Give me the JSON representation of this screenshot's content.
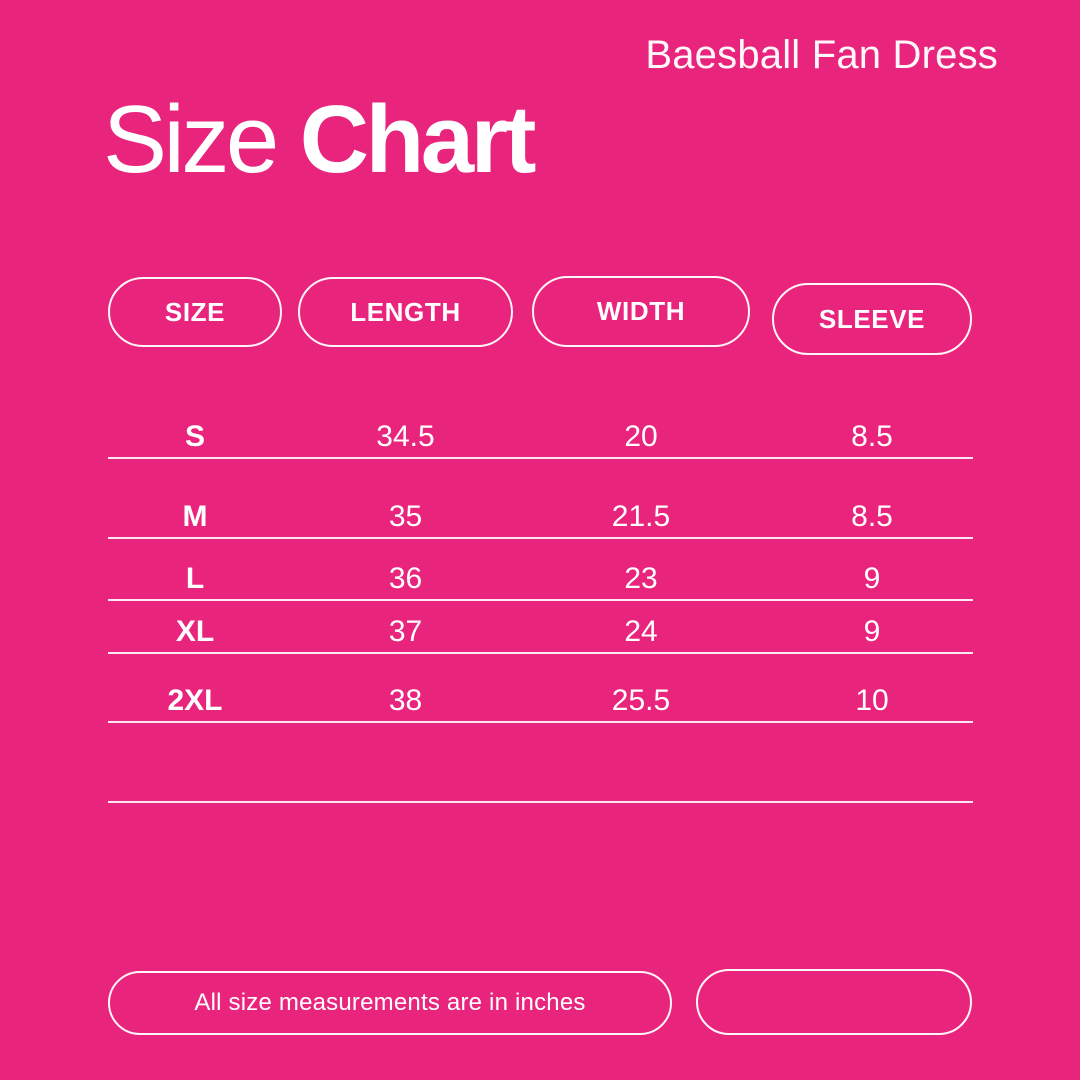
{
  "header": {
    "product_name": "Baesball Fan Dress"
  },
  "title": {
    "light": "Size",
    "bold": "Chart"
  },
  "chart_data": {
    "type": "table",
    "title": "Size Chart",
    "product": "Baesball Fan Dress",
    "columns": [
      "SIZE",
      "LENGTH",
      "WIDTH",
      "SLEEVE"
    ],
    "rows": [
      [
        "S",
        34.5,
        20,
        8.5
      ],
      [
        "M",
        35,
        21.5,
        8.5
      ],
      [
        "L",
        36,
        23,
        9
      ],
      [
        "XL",
        37,
        24,
        9
      ],
      [
        "2XL",
        38,
        25.5,
        10
      ]
    ],
    "note": "All size measurements are in inches"
  },
  "footer": {
    "note": "All size measurements are in inches"
  },
  "colors": {
    "background": "#E9247D",
    "text": "#FFFFFF",
    "line": "rgba(255,255,255,0.9)"
  }
}
